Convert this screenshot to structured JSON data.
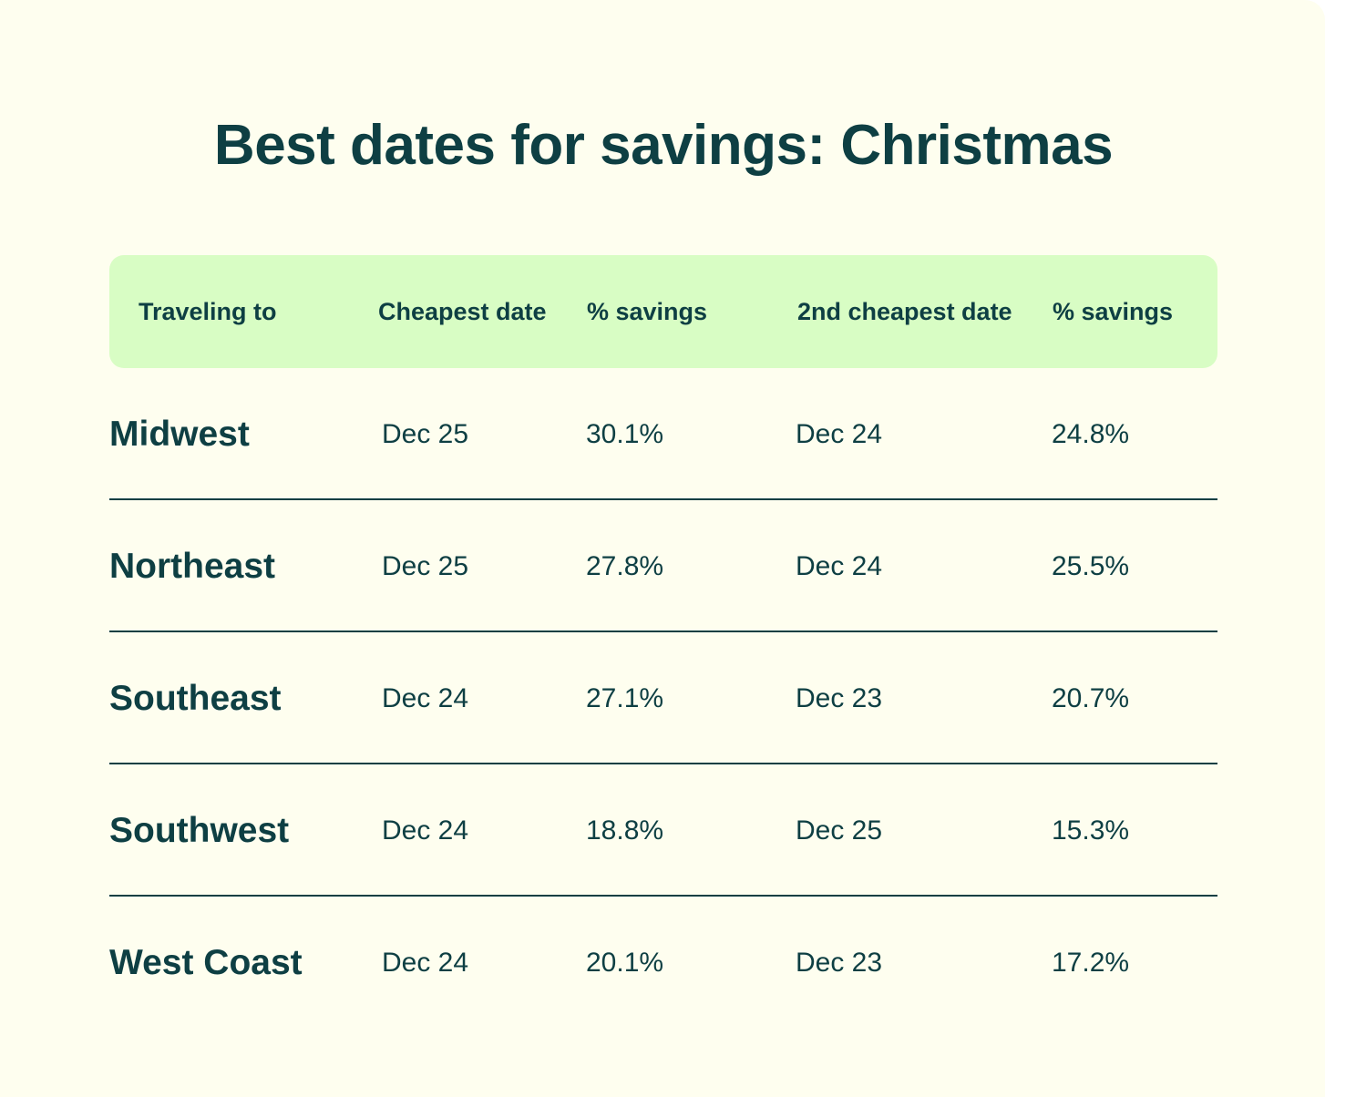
{
  "chart_data": {
    "type": "table",
    "title": "Best dates for savings: Christmas",
    "columns": [
      "Traveling to",
      "Cheapest date",
      "% savings",
      "2nd cheapest date",
      "% savings"
    ],
    "rows": [
      {
        "region": "Midwest",
        "cheapest_date": "Dec 25",
        "cheapest_savings": "30.1%",
        "second_date": "Dec 24",
        "second_savings": "24.8%"
      },
      {
        "region": "Northeast",
        "cheapest_date": "Dec 25",
        "cheapest_savings": "27.8%",
        "second_date": "Dec 24",
        "second_savings": "25.5%"
      },
      {
        "region": "Southeast",
        "cheapest_date": "Dec 24",
        "cheapest_savings": "27.1%",
        "second_date": "Dec 23",
        "second_savings": "20.7%"
      },
      {
        "region": "Southwest",
        "cheapest_date": "Dec 24",
        "cheapest_savings": "18.8%",
        "second_date": "Dec 25",
        "second_savings": "15.3%"
      },
      {
        "region": "West Coast",
        "cheapest_date": "Dec 24",
        "cheapest_savings": "20.1%",
        "second_date": "Dec 23",
        "second_savings": "17.2%"
      }
    ]
  },
  "colors": {
    "background": "#fefeef",
    "header_fill": "#d8fdc4",
    "text": "#0e3f43",
    "divider": "#0e3f43"
  }
}
